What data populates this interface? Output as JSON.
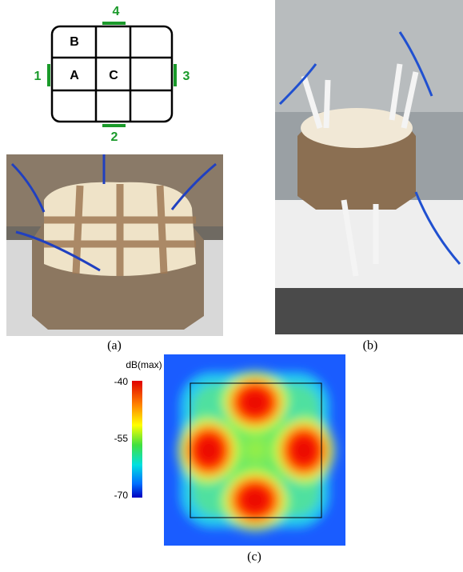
{
  "figure": {
    "panel_a": {
      "ports": [
        "4",
        "1",
        "3",
        "2"
      ],
      "cells": [
        "B",
        "A",
        "C"
      ],
      "caption": "(a)"
    },
    "panel_b": {
      "caption": "(b)"
    },
    "panel_c": {
      "colorbar": {
        "label": "dB(max)",
        "ticks": [
          -40,
          -55,
          -70
        ]
      },
      "caption": "(c)"
    }
  }
}
